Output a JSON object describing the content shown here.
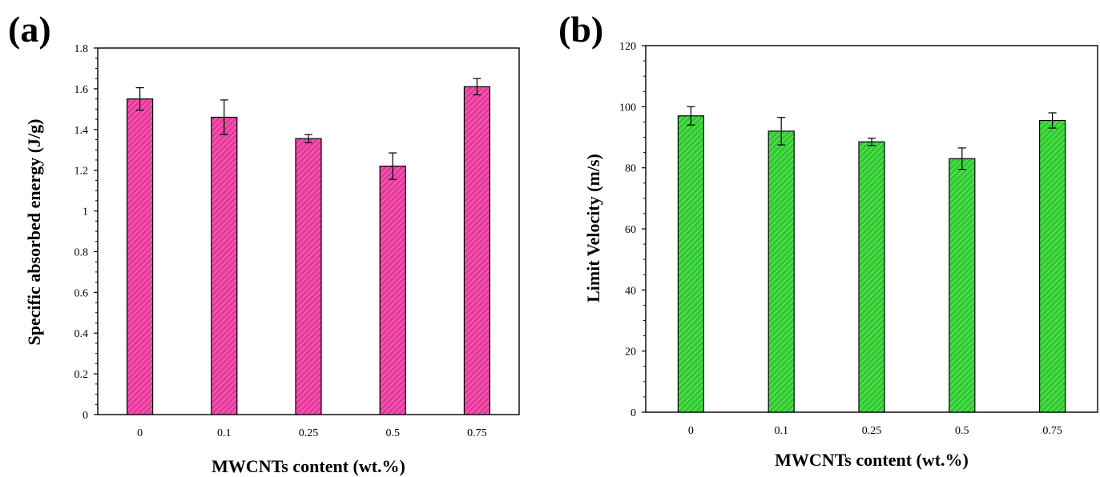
{
  "panels": [
    {
      "letter": "(a)"
    },
    {
      "letter": "(b)"
    }
  ],
  "colors": {
    "bar_a": "#e8389c",
    "bar_a_hatch": "#f58cc6",
    "bar_b": "#2ecb2e",
    "bar_b_hatch": "#8cec8c",
    "axis": "#000000"
  },
  "chart_data": [
    {
      "type": "bar",
      "title": "",
      "xlabel": "MWCNTs content (wt.%)",
      "ylabel": "Specific absorbed energy (J/g)",
      "categories": [
        "0",
        "0.1",
        "0.25",
        "0.5",
        "0.75"
      ],
      "values": [
        1.55,
        1.46,
        1.355,
        1.22,
        1.61
      ],
      "errors": [
        0.055,
        0.085,
        0.02,
        0.065,
        0.04
      ],
      "ylim": [
        0,
        1.8
      ],
      "yticks": [
        0,
        0.2,
        0.4,
        0.6,
        0.8,
        1,
        1.2,
        1.4,
        1.6,
        1.8
      ],
      "ytick_labels": [
        "0",
        "0.2",
        "0.4",
        "0.6",
        "0.8",
        "1",
        "1.2",
        "1.4",
        "1.6",
        "1.8"
      ],
      "grid": false,
      "bar_fill": "hatched pink"
    },
    {
      "type": "bar",
      "title": "",
      "xlabel": "MWCNTs content (wt.%)",
      "ylabel": "Limit Velocity (m/s)",
      "categories": [
        "0",
        "0.1",
        "0.25",
        "0.5",
        "0.75"
      ],
      "values": [
        97,
        92,
        88.5,
        83,
        95.5
      ],
      "errors": [
        3,
        4.5,
        1.2,
        3.5,
        2.5
      ],
      "ylim": [
        0,
        120
      ],
      "yticks": [
        0,
        20,
        40,
        60,
        80,
        100,
        120
      ],
      "ytick_labels": [
        "0",
        "20",
        "40",
        "60",
        "80",
        "100",
        "120"
      ],
      "grid": false,
      "bar_fill": "hatched green"
    }
  ]
}
